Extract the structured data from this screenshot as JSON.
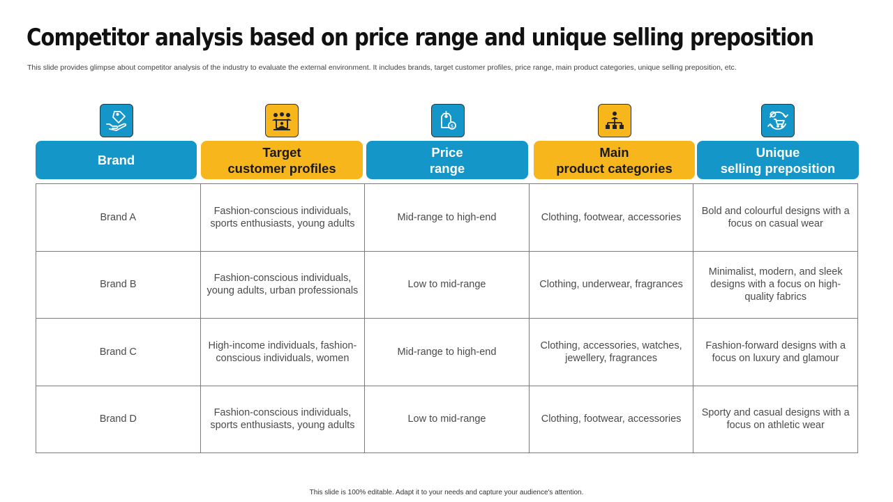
{
  "title": "Competitor analysis based on price range and unique selling preposition",
  "subtitle": "This slide provides glimpse about competitor analysis of the industry to evaluate the external environment. It includes brands, target customer profiles, price range, main product categories, unique selling preposition, etc.",
  "columns": [
    {
      "label": "Brand",
      "icon": "hand-tag-icon",
      "color": "#1496c8"
    },
    {
      "label": "Target\ncustomer profiles",
      "icon": "customer-group-icon",
      "color": "#f7b61b"
    },
    {
      "label": "Price\nrange",
      "icon": "price-tag-icon",
      "color": "#1496c8"
    },
    {
      "label": "Main\nproduct categories",
      "icon": "hierarchy-icon",
      "color": "#f7b61b"
    },
    {
      "label": "Unique\nselling preposition",
      "icon": "cart-cycle-icon",
      "color": "#1496c8"
    }
  ],
  "rows": [
    [
      "Brand A",
      "Fashion-conscious individuals, sports enthusiasts, young adults",
      "Mid-range to high-end",
      "Clothing, footwear, accessories",
      "Bold and colourful designs with a focus on casual wear"
    ],
    [
      "Brand B",
      "Fashion-conscious individuals, young adults, urban professionals",
      "Low to mid-range",
      "Clothing, underwear, fragrances",
      "Minimalist, modern, and sleek designs with a focus on high-quality fabrics"
    ],
    [
      "Brand C",
      "High-income individuals, fashion-conscious individuals, women",
      "Mid-range to high-end",
      "Clothing, accessories, watches, jewellery, fragrances",
      "Fashion-forward designs with a focus on luxury and glamour"
    ],
    [
      "Brand D",
      "Fashion-conscious individuals, sports enthusiasts, young adults",
      "Low to mid-range",
      "Clothing, footwear, accessories",
      "Sporty and casual designs with a focus on athletic wear"
    ]
  ],
  "footer": "This slide is 100% editable. Adapt it to your needs and capture your audience's attention."
}
